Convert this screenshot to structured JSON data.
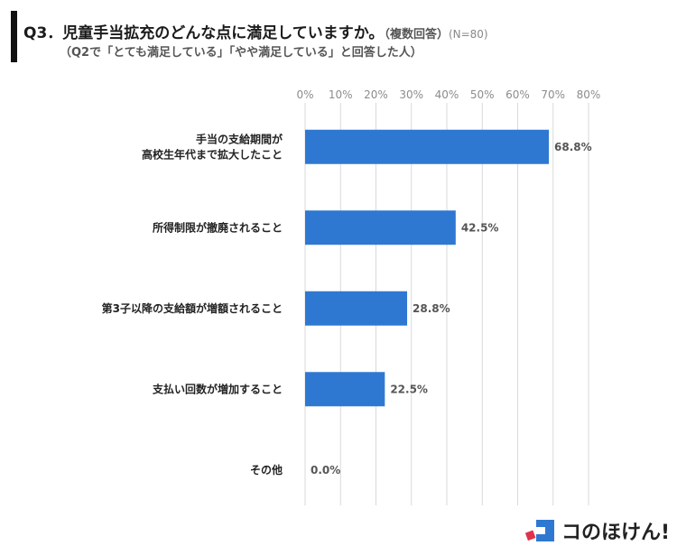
{
  "header": {
    "title": "Q3．児童手当拡充のどんな点に満足していますか。",
    "title_suffix": "（複数回答）",
    "sample_size": "(N=80)",
    "subtitle": "（Q2で「とても満足している」「やや満足している」と回答した人）"
  },
  "brand": {
    "name": "コのほけん!",
    "icon": "konohoken-logo-icon"
  },
  "colors": {
    "bar": "#2E78D2",
    "grid": "#d9d9d9",
    "tick": "#8c8c8c",
    "label": "#222222",
    "value": "#555555",
    "logo_blue": "#2E78D2",
    "logo_red": "#E0334A"
  },
  "chart_data": {
    "type": "bar",
    "orientation": "horizontal",
    "title": "Q3．児童手当拡充のどんな点に満足していますか。（複数回答）(N=80)",
    "categories": [
      [
        "手当の支給期間が",
        "高校生年代まで拡大したこと"
      ],
      [
        "所得制限が撤廃されること"
      ],
      [
        "第3子以降の支給額が増額されること"
      ],
      [
        "支払い回数が増加すること"
      ],
      [
        "その他"
      ]
    ],
    "values": [
      68.8,
      42.5,
      28.8,
      22.5,
      0.0
    ],
    "value_labels": [
      "68.8%",
      "42.5%",
      "28.8%",
      "22.5%",
      "0.0%"
    ],
    "xlim": [
      0,
      80
    ],
    "xticks": [
      "0%",
      "10%",
      "20%",
      "30%",
      "40%",
      "50%",
      "60%",
      "70%",
      "80%"
    ],
    "tick_axis_position": "top",
    "grid": true
  }
}
